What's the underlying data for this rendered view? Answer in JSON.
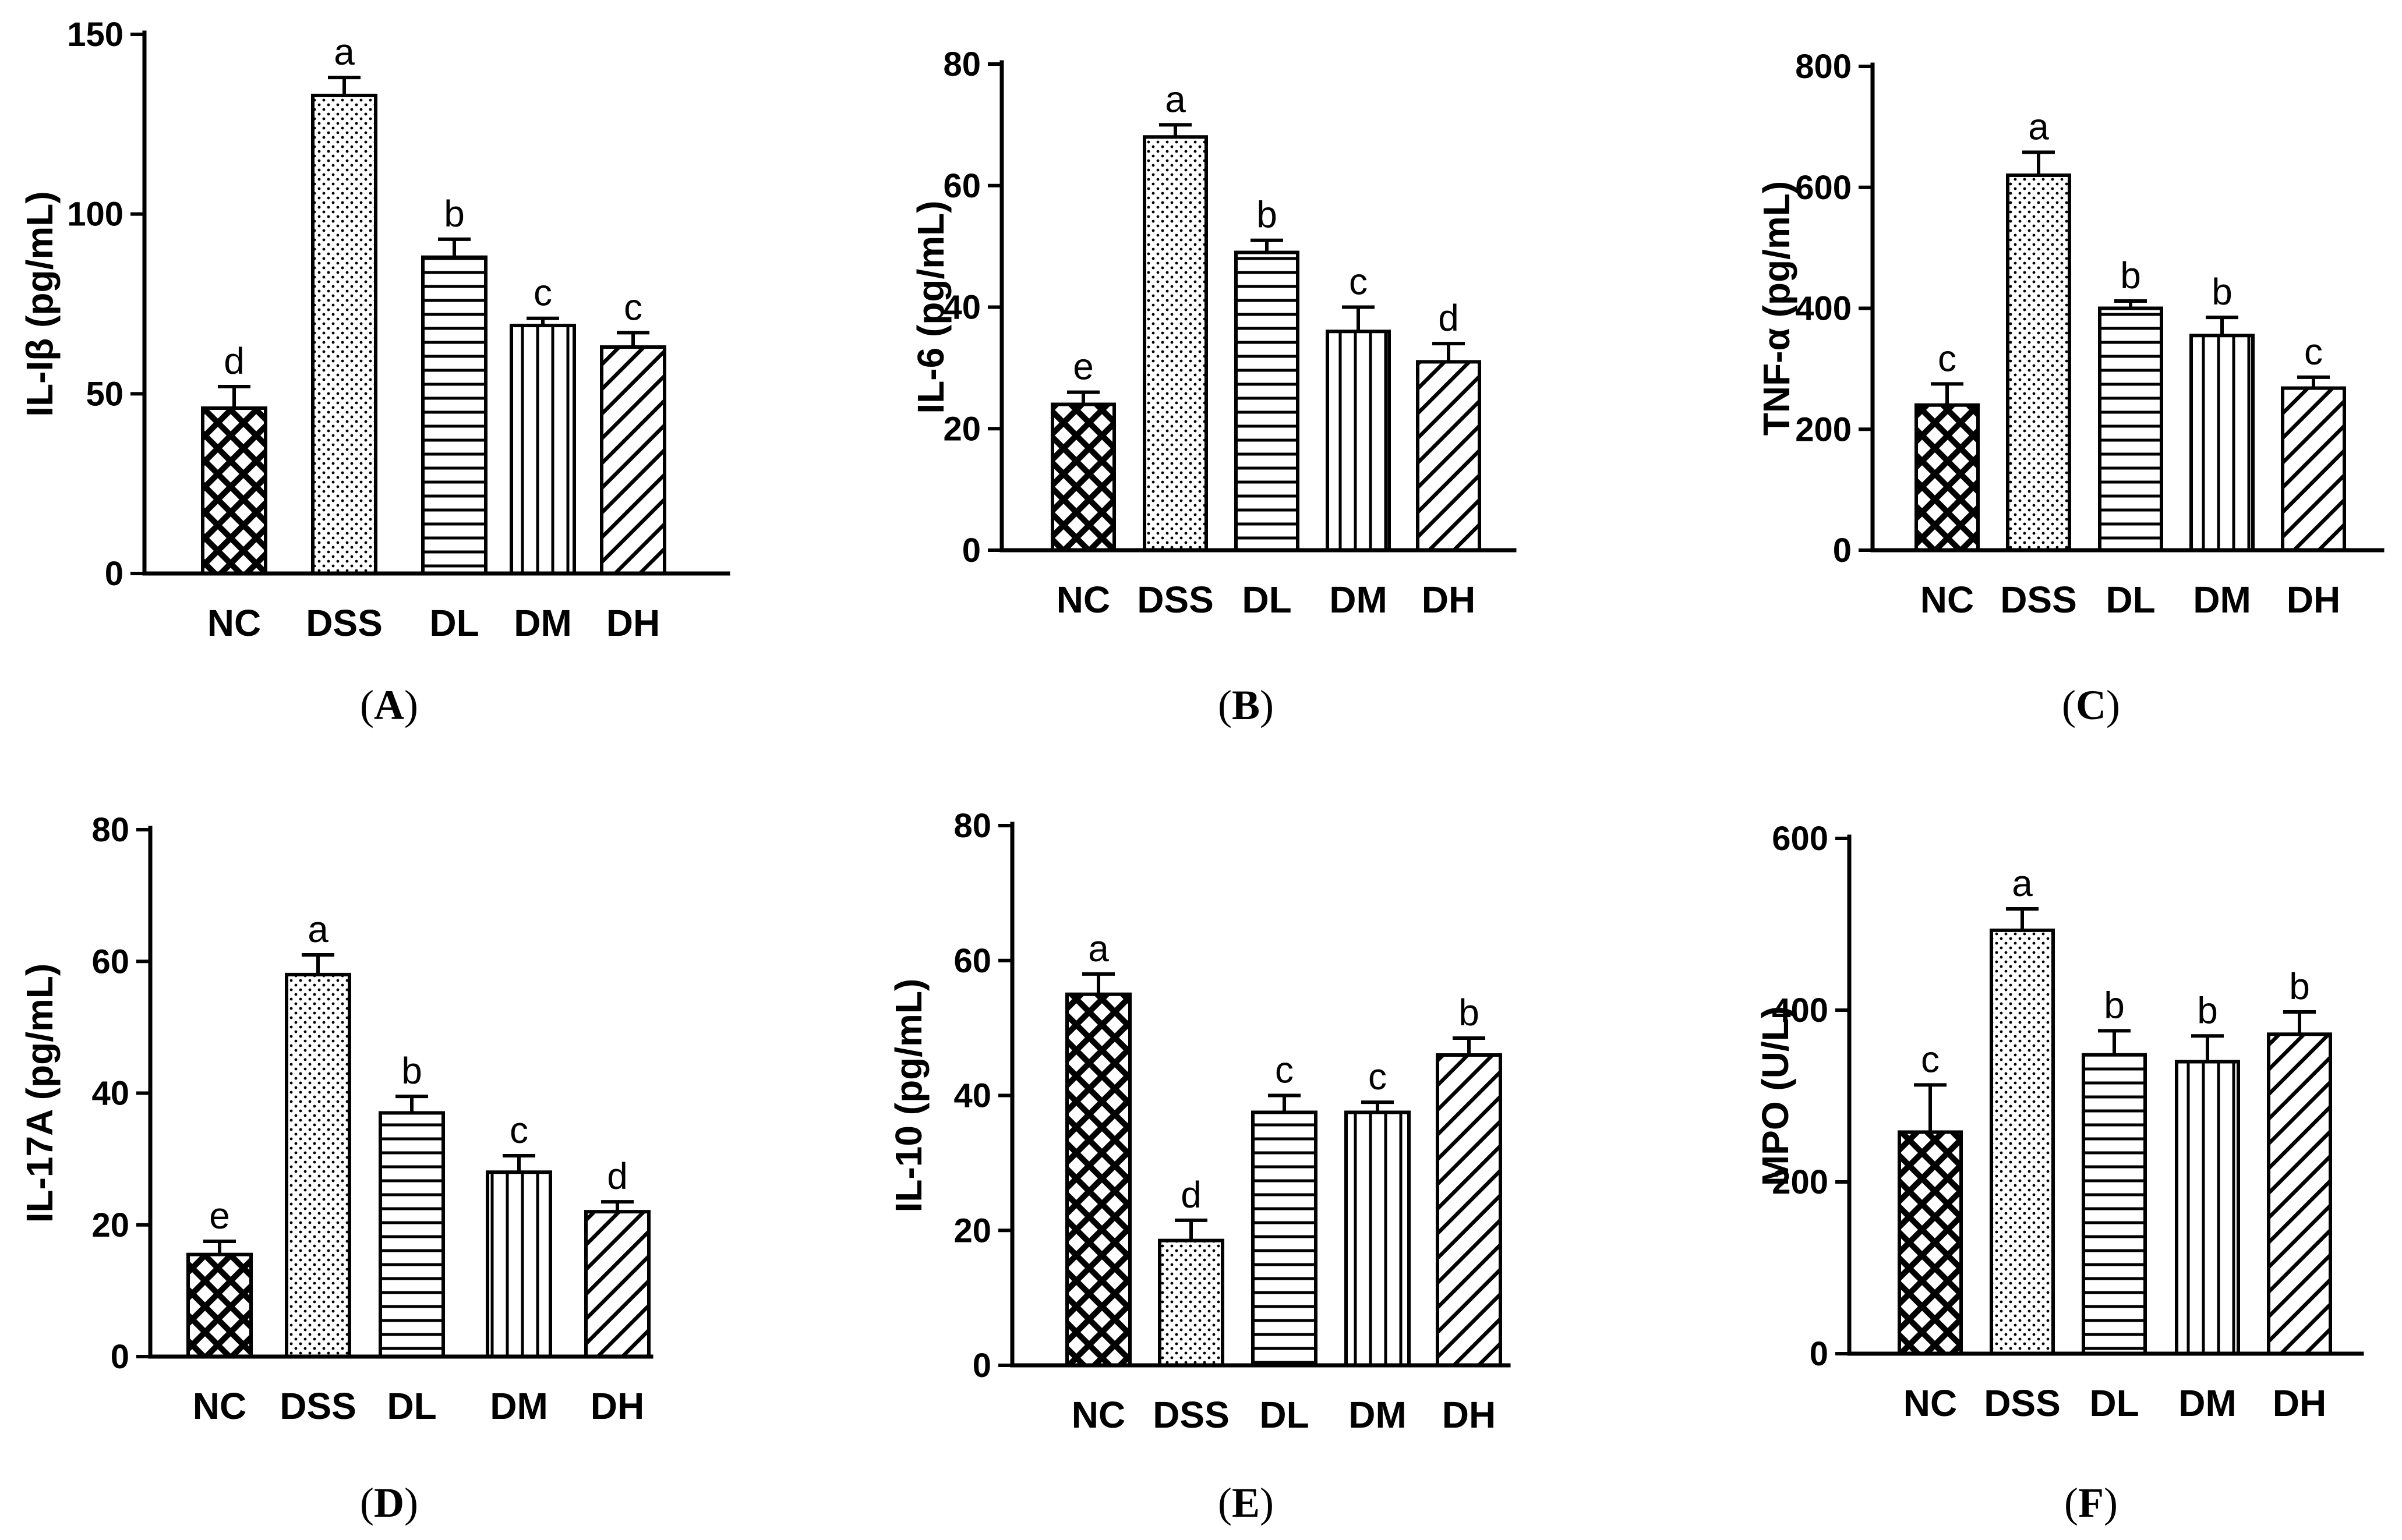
{
  "chart_data": [
    {
      "type": "bar",
      "panel": "A",
      "ylabel": "IL-Iβ (pg/mL)",
      "ylim": [
        0,
        150
      ],
      "yticks": [
        0,
        50,
        100,
        150
      ],
      "categories": [
        "NC",
        "DSS",
        "DL",
        "DM",
        "DH"
      ],
      "values": [
        46,
        133,
        88,
        69,
        63
      ],
      "errors": [
        6,
        5,
        5,
        2,
        4
      ],
      "significance": [
        "d",
        "a",
        "b",
        "c",
        "c"
      ]
    },
    {
      "type": "bar",
      "panel": "B",
      "ylabel": "IL-6 (pg/mL)",
      "ylim": [
        0,
        80
      ],
      "yticks": [
        0,
        20,
        40,
        60,
        80
      ],
      "categories": [
        "NC",
        "DSS",
        "DL",
        "DM",
        "DH"
      ],
      "values": [
        24,
        68,
        49,
        36,
        31
      ],
      "errors": [
        2,
        2,
        2,
        4,
        3
      ],
      "significance": [
        "e",
        "a",
        "b",
        "c",
        "d"
      ]
    },
    {
      "type": "bar",
      "panel": "C",
      "ylabel": "TNF-α (pg/mL)",
      "ylim": [
        0,
        800
      ],
      "yticks": [
        0,
        200,
        400,
        600,
        800
      ],
      "categories": [
        "NC",
        "DSS",
        "DL",
        "DM",
        "DH"
      ],
      "values": [
        240,
        620,
        400,
        355,
        268
      ],
      "errors": [
        35,
        38,
        12,
        30,
        18
      ],
      "significance": [
        "c",
        "a",
        "b",
        "b",
        "c"
      ]
    },
    {
      "type": "bar",
      "panel": "D",
      "ylabel": "IL-17A (pg/mL)",
      "ylim": [
        0,
        80
      ],
      "yticks": [
        0,
        20,
        40,
        60,
        80
      ],
      "categories": [
        "NC",
        "DSS",
        "DL",
        "DM",
        "DH"
      ],
      "values": [
        15.5,
        58,
        37,
        28,
        22
      ],
      "errors": [
        2,
        3,
        2.5,
        2.5,
        1.5
      ],
      "significance": [
        "e",
        "a",
        "b",
        "c",
        "d"
      ]
    },
    {
      "type": "bar",
      "panel": "E",
      "ylabel": "IL-10 (pg/mL)",
      "ylim": [
        0,
        80
      ],
      "yticks": [
        0,
        20,
        40,
        60,
        80
      ],
      "categories": [
        "NC",
        "DSS",
        "DL",
        "DM",
        "DH"
      ],
      "values": [
        55,
        18.5,
        37.5,
        37.5,
        46
      ],
      "errors": [
        3,
        3,
        2.5,
        1.5,
        2.5
      ],
      "significance": [
        "a",
        "d",
        "c",
        "c",
        "b"
      ]
    },
    {
      "type": "bar",
      "panel": "F",
      "ylabel": "MPO (U/L)",
      "ylim": [
        0,
        600
      ],
      "yticks": [
        0,
        200,
        400,
        600
      ],
      "categories": [
        "NC",
        "DSS",
        "DL",
        "DM",
        "DH"
      ],
      "values": [
        258,
        493,
        348,
        340,
        372
      ],
      "errors": [
        55,
        25,
        28,
        30,
        26
      ],
      "significance": [
        "c",
        "a",
        "b",
        "b",
        "b"
      ]
    }
  ],
  "panel_labels": [
    {
      "open": "(",
      "letter": "A",
      "close": ")"
    },
    {
      "open": "(",
      "letter": "B",
      "close": ")"
    },
    {
      "open": "(",
      "letter": "C",
      "close": ")"
    },
    {
      "open": "(",
      "letter": "D",
      "close": ")"
    },
    {
      "open": "(",
      "letter": "E",
      "close": ")"
    },
    {
      "open": "(",
      "letter": "F",
      "close": ")"
    }
  ],
  "patterns": [
    "crosshatch-icon",
    "dots-icon",
    "horizontal-lines-icon",
    "vertical-lines-icon",
    "diagonal-lines-icon"
  ]
}
